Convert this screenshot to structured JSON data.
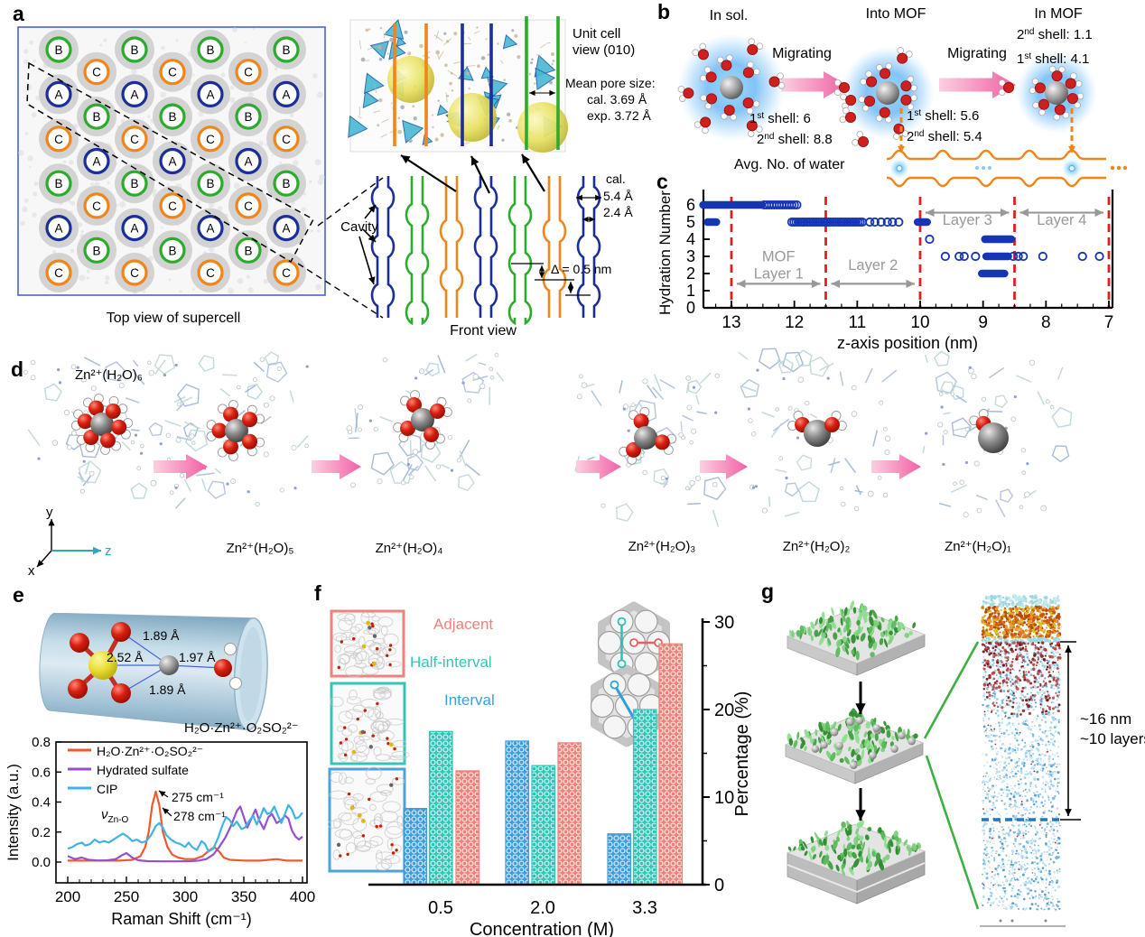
{
  "colors": {
    "site_A": "#1b2f96",
    "site_B": "#2cab2c",
    "site_C": "#f08519",
    "supercell_border": "#4f63c8",
    "scatter_blue": "#1535b5",
    "dashed_red": "#e02020",
    "layer_gray": "#999999",
    "migrate_pink": "#f267ab",
    "channel_orange": "#f08519",
    "bar_interval": "#3f9ede",
    "bar_half": "#35c4b8",
    "bar_adjacent": "#ee837b",
    "green_line": "#3cb043",
    "axis_teal": "#2fa8b8",
    "dashed_blue": "#2277bb",
    "yellow_sphere": "#e8e060"
  },
  "panels": {
    "a": {
      "letter": "a",
      "caption": "Top view of supercell",
      "cavity": "Cavity",
      "unit_cell_line1": "Unit cell",
      "unit_cell_line2": "view (010)",
      "mean_pore_title": "Mean pore size:",
      "mean_pore_cal": "cal. 3.69 Å",
      "mean_pore_exp": "exp. 3.72 Å",
      "front_caption": "Front view",
      "cal_word": "cal.",
      "bulge_width": "5.4 Å",
      "neck_width": "2.4 Å",
      "delta": "Δ = 0.5 nm",
      "grid_rows": [
        {
          "label": "B"
        },
        {
          "label": "C"
        },
        {
          "label": "A"
        },
        {
          "label": "B"
        },
        {
          "label": "C"
        },
        {
          "label": "A"
        },
        {
          "label": "B"
        },
        {
          "label": "C"
        },
        {
          "label": "A"
        },
        {
          "label": "B"
        },
        {
          "label": "C"
        }
      ]
    },
    "b": {
      "letter": "b",
      "migrating": "Migrating",
      "avg": "Avg. No. of water",
      "stages": [
        {
          "title": "In sol.",
          "labels": [
            {
              "pre": "1",
              "sup": "st",
              "post": " shell: 6"
            },
            {
              "pre": "2",
              "sup": "nd",
              "post": " shell: 8.8"
            }
          ]
        },
        {
          "title": "Into MOF",
          "labels": [
            {
              "pre": "1",
              "sup": "st",
              "post": " shell: 5.6"
            },
            {
              "pre": "2",
              "sup": "nd",
              "post": " shell: 5.4"
            }
          ]
        },
        {
          "title": "In MOF",
          "labels": [
            {
              "pre": "2",
              "sup": "nd",
              "post": " shell: 1.1"
            },
            {
              "pre": "1",
              "sup": "st",
              "post": " shell: 4.1"
            }
          ]
        }
      ]
    },
    "c": {
      "letter": "c"
    },
    "d": {
      "letter": "d",
      "structures": [
        {
          "formula": "Zn²⁺(H₂O)₆",
          "n": 6
        },
        {
          "formula": "Zn²⁺(H₂O)₅",
          "n": 5
        },
        {
          "formula": "Zn²⁺(H₂O)₄",
          "n": 4
        },
        {
          "formula": "Zn²⁺(H₂O)₃",
          "n": 3
        },
        {
          "formula": "Zn²⁺(H₂O)₂",
          "n": 2
        },
        {
          "formula": "Zn²⁺(H₂O)₁",
          "n": 1
        }
      ],
      "axes": {
        "x": "x",
        "y": "y",
        "z": "z"
      }
    },
    "e": {
      "letter": "e",
      "distances": [
        "1.89 Å",
        "2.52 Å",
        "1.97 Å",
        "1.89 Å"
      ],
      "complex": "H₂O·Zn²⁺·O₂SO₂²⁻",
      "nu_sym": "ν",
      "nu_sub": "Zn-O"
    },
    "f": {
      "letter": "f",
      "legend": [
        {
          "label": "Adjacent",
          "color": "#ee837b"
        },
        {
          "label": "Half-interval",
          "color": "#35c4b8"
        },
        {
          "label": "Interval",
          "color": "#3f9ede"
        }
      ]
    },
    "g": {
      "letter": "g",
      "depth": "~16 nm",
      "layers": "~10 layers"
    }
  },
  "chart_data": [
    {
      "id": "hydration_number_vs_z",
      "type": "scatter",
      "xlabel": "z-axis position (nm)",
      "ylabel": "Hydration Number",
      "x_ticks": [
        13,
        12,
        11,
        10,
        9,
        8,
        7
      ],
      "x_reversed": true,
      "xlim": [
        13.45,
        6.94
      ],
      "ylim": [
        0,
        6
      ],
      "y_ticks": [
        0,
        1,
        2,
        3,
        4,
        5,
        6
      ],
      "boundary_lines_z": [
        13,
        11.5,
        10,
        8.5,
        7
      ],
      "layers": [
        {
          "lines": [
            "MOF",
            "Layer 1"
          ],
          "from": 13,
          "to": 11.5,
          "arrow_hn": 1.4,
          "label_hn": 2.7
        },
        {
          "lines": [
            "Layer 2"
          ],
          "from": 11.5,
          "to": 10,
          "arrow_hn": 1.4,
          "label_hn": 2.2
        },
        {
          "lines": [
            "Layer 3"
          ],
          "from": 10,
          "to": 8.5,
          "arrow_hn": 5.55,
          "label_hn": 4.85
        },
        {
          "lines": [
            "Layer 4"
          ],
          "from": 8.5,
          "to": 7,
          "arrow_hn": 5.55,
          "label_hn": 4.85
        }
      ],
      "solid_runs": [
        {
          "hn": 6,
          "from": 13.45,
          "to": 12.52
        },
        {
          "hn": 5,
          "from": 13.38,
          "to": 13.24
        },
        {
          "hn": 5,
          "from": 10.04,
          "to": 9.89
        },
        {
          "hn": 4,
          "from": 8.97,
          "to": 8.55
        },
        {
          "hn": 3,
          "from": 8.95,
          "to": 8.6
        },
        {
          "hn": 2,
          "from": 9.02,
          "to": 8.66
        }
      ],
      "circle_runs": [
        {
          "hn": 6,
          "from": 12.48,
          "to": 11.96,
          "step": 0.04
        },
        {
          "hn": 5,
          "from": 12.04,
          "to": 10.9,
          "step": 0.034
        }
      ],
      "points": [
        {
          "hn": 5,
          "z": [
            10.8,
            10.72,
            10.62,
            10.52,
            10.44,
            10.34
          ]
        },
        {
          "hn": 4,
          "z": [
            9.85
          ]
        },
        {
          "hn": 3,
          "z": [
            9.6,
            9.38,
            9.3,
            9.12,
            8.52,
            8.44,
            8.36,
            8.05,
            7.42,
            7.15
          ]
        }
      ]
    },
    {
      "id": "raman_spectra",
      "type": "line",
      "xlabel": "Raman Shift (cm⁻¹)",
      "ylabel": "Intensity (a.u.)",
      "xlim": [
        200,
        400
      ],
      "x_ticks": [
        200,
        250,
        300,
        350,
        400
      ],
      "ylim": [
        0,
        0.8
      ],
      "y_ticks": [
        0,
        0.2,
        0.4,
        0.6,
        0.8
      ],
      "annotations": [
        {
          "text": "275 cm⁻¹",
          "peak_x": 275
        },
        {
          "text": "278 cm⁻¹",
          "peak_x": 278
        }
      ],
      "series": [
        {
          "name": "H₂O·Zn²⁺·O₂SO₂²⁻",
          "color": "#ee5a2e",
          "points": [
            [
              200,
              0.01
            ],
            [
              245,
              0.01
            ],
            [
              255,
              0.015
            ],
            [
              262,
              0.04
            ],
            [
              266,
              0.1
            ],
            [
              269,
              0.2
            ],
            [
              272,
              0.38
            ],
            [
              275,
              0.47
            ],
            [
              278,
              0.38
            ],
            [
              281,
              0.2
            ],
            [
              285,
              0.1
            ],
            [
              289,
              0.05
            ],
            [
              294,
              0.03
            ],
            [
              300,
              0.02
            ],
            [
              308,
              0.02
            ],
            [
              315,
              0.04
            ],
            [
              321,
              0.08
            ],
            [
              325,
              0.1
            ],
            [
              329,
              0.07
            ],
            [
              333,
              0.03
            ],
            [
              338,
              0.015
            ],
            [
              350,
              0.01
            ],
            [
              365,
              0.01
            ],
            [
              378,
              0.02
            ],
            [
              386,
              0.01
            ],
            [
              400,
              0.01
            ]
          ]
        },
        {
          "name": "Hydrated sulfate",
          "color": "#9450d0",
          "points": [
            [
              200,
              0.04
            ],
            [
              206,
              0.02
            ],
            [
              212,
              0.03
            ],
            [
              218,
              0.015
            ],
            [
              226,
              0.01
            ],
            [
              234,
              0.012
            ],
            [
              241,
              0.02
            ],
            [
              246,
              0.045
            ],
            [
              250,
              0.06
            ],
            [
              255,
              0.03
            ],
            [
              260,
              0.012
            ],
            [
              268,
              0.006
            ],
            [
              280,
              0.005
            ],
            [
              292,
              0.005
            ],
            [
              304,
              0.006
            ],
            [
              312,
              0.01
            ],
            [
              318,
              0.02
            ],
            [
              324,
              0.05
            ],
            [
              329,
              0.1
            ],
            [
              334,
              0.16
            ],
            [
              339,
              0.24
            ],
            [
              344,
              0.34
            ],
            [
              347,
              0.37
            ],
            [
              350,
              0.3
            ],
            [
              353,
              0.23
            ],
            [
              357,
              0.3
            ],
            [
              360,
              0.35
            ],
            [
              363,
              0.28
            ],
            [
              367,
              0.22
            ],
            [
              371,
              0.3
            ],
            [
              374,
              0.32
            ],
            [
              378,
              0.26
            ],
            [
              382,
              0.28
            ],
            [
              385,
              0.31
            ],
            [
              388,
              0.29
            ],
            [
              391,
              0.21
            ],
            [
              394,
              0.17
            ],
            [
              397,
              0.15
            ],
            [
              400,
              0.17
            ]
          ]
        },
        {
          "name": "CIP",
          "color": "#3fb4e4",
          "points": [
            [
              200,
              0.09
            ],
            [
              204,
              0.1
            ],
            [
              208,
              0.12
            ],
            [
              212,
              0.13
            ],
            [
              215,
              0.11
            ],
            [
              219,
              0.12
            ],
            [
              223,
              0.15
            ],
            [
              227,
              0.13
            ],
            [
              231,
              0.14
            ],
            [
              235,
              0.13
            ],
            [
              239,
              0.15
            ],
            [
              243,
              0.17
            ],
            [
              247,
              0.19
            ],
            [
              251,
              0.17
            ],
            [
              255,
              0.14
            ],
            [
              259,
              0.15
            ],
            [
              263,
              0.13
            ],
            [
              267,
              0.14
            ],
            [
              271,
              0.18
            ],
            [
              275,
              0.24
            ],
            [
              278,
              0.26
            ],
            [
              281,
              0.23
            ],
            [
              284,
              0.18
            ],
            [
              288,
              0.15
            ],
            [
              292,
              0.13
            ],
            [
              296,
              0.12
            ],
            [
              300,
              0.1
            ],
            [
              303,
              0.13
            ],
            [
              306,
              0.1
            ],
            [
              310,
              0.08
            ],
            [
              314,
              0.14
            ],
            [
              317,
              0.12
            ],
            [
              320,
              0.07
            ],
            [
              324,
              0.09
            ],
            [
              328,
              0.16
            ],
            [
              332,
              0.25
            ],
            [
              335,
              0.3
            ],
            [
              338,
              0.28
            ],
            [
              341,
              0.24
            ],
            [
              344,
              0.27
            ],
            [
              348,
              0.22
            ],
            [
              351,
              0.23
            ],
            [
              355,
              0.28
            ],
            [
              358,
              0.31
            ],
            [
              361,
              0.25
            ],
            [
              364,
              0.3
            ],
            [
              367,
              0.36
            ],
            [
              370,
              0.32
            ],
            [
              373,
              0.33
            ],
            [
              376,
              0.37
            ],
            [
              379,
              0.31
            ],
            [
              382,
              0.26
            ],
            [
              385,
              0.32
            ],
            [
              388,
              0.38
            ],
            [
              391,
              0.35
            ],
            [
              394,
              0.29
            ],
            [
              397,
              0.3
            ],
            [
              400,
              0.33
            ]
          ]
        }
      ]
    },
    {
      "id": "ion_pair_arrangement",
      "type": "bar",
      "xlabel": "Concentration (M)",
      "ylabel": "Percentage (%)",
      "categories": [
        "0.5",
        "2.0",
        "3.3"
      ],
      "ylim": [
        0,
        30
      ],
      "y_ticks": [
        0,
        10,
        20,
        30
      ],
      "series": [
        {
          "name": "Interval",
          "color": "#3f9ede",
          "values": [
            8.7,
            16.4,
            5.8
          ]
        },
        {
          "name": "Half-interval",
          "color": "#35c4b8",
          "values": [
            17.5,
            13.6,
            20.0
          ]
        },
        {
          "name": "Adjacent",
          "color": "#ee837b",
          "values": [
            13.0,
            16.2,
            27.5
          ]
        }
      ]
    }
  ]
}
